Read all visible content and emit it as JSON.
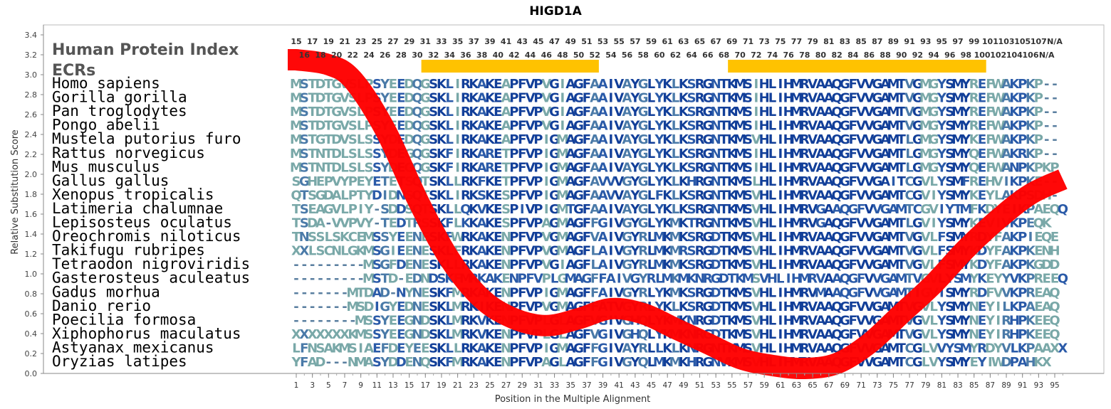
{
  "chart_data": {
    "type": "sequence-alignment",
    "title": "HIGD1A",
    "xlabel": "Position in the Multiple Alignment",
    "ylabel": "Relative Substitution Score",
    "ylim": [
      0,
      3.5
    ],
    "yticks": [
      "0.0",
      "0.2",
      "0.4",
      "0.6",
      "0.8",
      "1.0",
      "1.2",
      "1.4",
      "1.6",
      "1.8",
      "2.0",
      "2.2",
      "2.4",
      "2.6",
      "2.8",
      "3.0",
      "3.2",
      "3.4"
    ],
    "xlim": [
      1,
      96
    ],
    "xticks": [
      "1",
      "3",
      "5",
      "7",
      "9",
      "11",
      "13",
      "15",
      "17",
      "19",
      "21",
      "23",
      "25",
      "27",
      "29",
      "31",
      "33",
      "35",
      "37",
      "39",
      "41",
      "43",
      "45",
      "47",
      "49",
      "51",
      "53",
      "55",
      "57",
      "59",
      "61",
      "63",
      "65",
      "67",
      "69",
      "71",
      "73",
      "75",
      "77",
      "79",
      "81",
      "83",
      "85",
      "87",
      "89",
      "91",
      "93",
      "95"
    ],
    "protein_index_odd": [
      "15",
      "17",
      "19",
      "21",
      "23",
      "25",
      "27",
      "29",
      "31",
      "33",
      "35",
      "37",
      "39",
      "41",
      "43",
      "45",
      "47",
      "49",
      "51",
      "53",
      "55",
      "57",
      "59",
      "61",
      "63",
      "65",
      "67",
      "69",
      "71",
      "73",
      "75",
      "77",
      "79",
      "81",
      "83",
      "85",
      "87",
      "89",
      "91",
      "93",
      "95",
      "97",
      "99",
      "101",
      "103",
      "105",
      "107",
      "N/A"
    ],
    "protein_index_even": [
      "16",
      "18",
      "20",
      "22",
      "24",
      "26",
      "28",
      "30",
      "32",
      "34",
      "36",
      "38",
      "40",
      "42",
      "44",
      "46",
      "48",
      "50",
      "52",
      "54",
      "56",
      "58",
      "60",
      "62",
      "64",
      "66",
      "68",
      "70",
      "72",
      "74",
      "76",
      "78",
      "80",
      "82",
      "84",
      "86",
      "88",
      "90",
      "92",
      "94",
      "96",
      "98",
      "100",
      "102",
      "104",
      "106",
      "N/A"
    ],
    "header_label": "Human Protein Index",
    "ecr_label": "ECRs",
    "ecr_regions": [
      [
        17,
        38
      ],
      [
        55,
        86
      ]
    ],
    "curve": {
      "x": [
        1,
        5,
        8,
        12,
        16,
        20,
        24,
        28,
        32,
        36,
        40,
        44,
        48,
        52,
        56,
        60,
        64,
        68,
        72,
        76,
        80,
        84,
        88,
        92,
        96
      ],
      "y": [
        3.15,
        3.1,
        2.95,
        2.45,
        1.75,
        1.15,
        0.75,
        0.55,
        0.48,
        0.55,
        0.65,
        0.6,
        0.45,
        0.3,
        0.15,
        0.08,
        0.05,
        0.1,
        0.3,
        0.6,
        0.9,
        1.25,
        1.55,
        1.8,
        1.95
      ]
    },
    "species": [
      "Homo sapiens",
      "Gorilla gorilla",
      "Pan troglodytes",
      "Pongo abelii",
      "Mustela putorius furo",
      "Rattus norvegicus",
      "Mus musculus",
      "Gallus gallus",
      "Xenopus tropicalis",
      "Latimeria chalumnae",
      "Lepisosteus oculatus",
      "Oreochromis niloticus",
      "Takifugu rubripes",
      "Tetraodon nigroviridis",
      "Gasterosteus aculeatus",
      "Gadus morhua",
      "Danio rerio",
      "Poecilia formosa",
      "Xiphophorus maculatus",
      "Astyanax mexicanus",
      "Oryzias latipes"
    ],
    "sequences": [
      "MSTDTGVSLPSYEEDQGSKLIRKAKEAPFVPVGIAGFAAIVAYGLYKLKSRGNTKMSIHLIHMRVAAQGFVVGAMTVGMGYSMYREFWAKPKP--",
      "MSTDTGVSLPSYEEDQGSKLIRKAKEAPFVPVGIAGFAAIVAYGLYKLKSRGNTKMSIHLIHMRVAAQGFVVGAMTVGMGYSMYREFWAKPKP--",
      "MSTDTGVSLPSYEEDQGSKLIRKAKEAPFVPVGIAGFAAIVAYGLYKLKSRGNTKMSIHLIHMRVAAQGFVVGAMTVGMGYSMYREFWAKPKP--",
      "MSTDTGVSLPSYEEDQGSKLIRKAKEAPFVPVGIAGFAAIVAYGLYKLKSRGNTKMSIHLIHMRVAAQGFVVGAMTVGMGYSMYREFWAKPKP--",
      "MSTGTDVSLSSYDEDQGSKLIRKAKEAPFVPIGMAGFAAIVAYGLYKLKSRGNTKMSVHLIHMRVAAQGFVVGAMTLGMGYSMYKEFWAKPKP--",
      "MSTNTDLSLSSYDEGQGSKFIRKARETPFVPIGMAGFAAIVAYGLYKLKSRGNTKMSIHLIHMRVAAQGFVVGAMTLGMGYSMYQEFWAKRKP--",
      "MSTNTDLSLSSYDEGQGSKFIRKARETPFVPIGMAGFAAIVAYGLYKLKSRGNTKMSIHLIHMRVAAQGFVVGAMTLGMGYSMYQEFWANPKPKP",
      "SGHEPVYPEYETETSQTSKLLRKFKETPFVPIGMAGFAVVVGYGLYKLKHRGNTKMSLHLIHMRVAAQGFVVGAITCGVLYSMFREHVIKPKE--",
      "QTSGDALPTYDIDNSQTSKLIRKSKESPFVPIGMAGFAAVVAYGLFKLKSRGNTKMSVHLIHMRVAAQGFVVGAMTCGVIYSMYKEYLAKPSDH-",
      "TSEAGVLPIY-SDDSQTSKLLQKVKESPIVPIGMTGFAAIVAYGLYKLKSRGNTKMSVHLIHMRVGAAQGFVVGAMTCGVIYTMFKDYEIKPAEQQ",
      "TSDA-VVPVY-TEDTRSSKFLKKAKESPFVPAGMAGFFGIVGYGLYKMKTRGNTKMSVHLIHMRVGAQGFVVGAMTLGVIYSMYKEVIVKPEQK",
      "TNSSLSKCEMSSYEENESKFWRKAKENPFVPVGMAGFVAIVGYRLMKMKSRGDTKMSVHLIHMRVAAQGFVVGAMTVGVLFSMYRDYFAKPIEQE",
      "XXLSCNLGKMSGIEENESKLFRKAKENPFVPVGMAGFLAIVGYRLMKMRSRGDTKMSVHLIHMRVAAQGFVVGAMTVGVLFSMYKDYFAKPKENH",
      "---------MSGFDENESKLLRKAKENPFVPVGIAGFLAIVGYRLMKMKSRGDTKMSVHLIHMRVAAQGFVVGAMTVGVLFSMYKDYFAKPKGDD",
      "---------MSTD-EDNDSKFMRKAKENPFVPLGMAGFFAIVGYRLMKMKNRGDTKMSVHLIHMRVAAQGFVVGAMTVGVLYSMYKEYYVKPREEQ",
      "-------MTDAD-NYNESKFMRKAKENPFVPIGMAGFFAIVGYRLYKMKSRGDTKMSVHLIHMRVMAAQGFVVGAMTIGVISMYRDFVVKPREAQ",
      "-------MSDIGYEDNESKLMRKIKENPFVPVGMAGFFATVGYRLYKLKSRGDTKMSVHLIHMRVAAQGFVVGAMTVGVLYSMYNEYILKPAEAQ",
      "--------MSSYEEGNDSKLMRKVKENPFVPLGLAGFVGIVGHQLYKMKNRGDTKMSVHLIHMRVAAQGFVVGAMTVGVLYSMYNEYIRHPKEEQ",
      "XXXXXXXKMSSYEEGNDSKLMRKVKENPFVPLGLAGFVGIVGHQLYKMKNRGDTKMSVHLIHMRVAAQGFVVGAMTVGVLYSMYNEYIRHPKEEQ",
      "LFNSAKMSIAEFDEYEESKLLRKAKENPFVPIGMAGFFGIVAYRLLKLKNRGNTKMSVHLIHMRVAAQGFVVGAMTCGLVVYSMYRDYVLKPAAXX",
      "YFAD---NMASYDDENQSKFMRKAKENPFVPAGLAGFFGIVGYQLMKMKHRGNVKMSVHLIHMRVAAQGFVVGAMTCGLVYSMYEYIWDPAHKX"
    ]
  }
}
